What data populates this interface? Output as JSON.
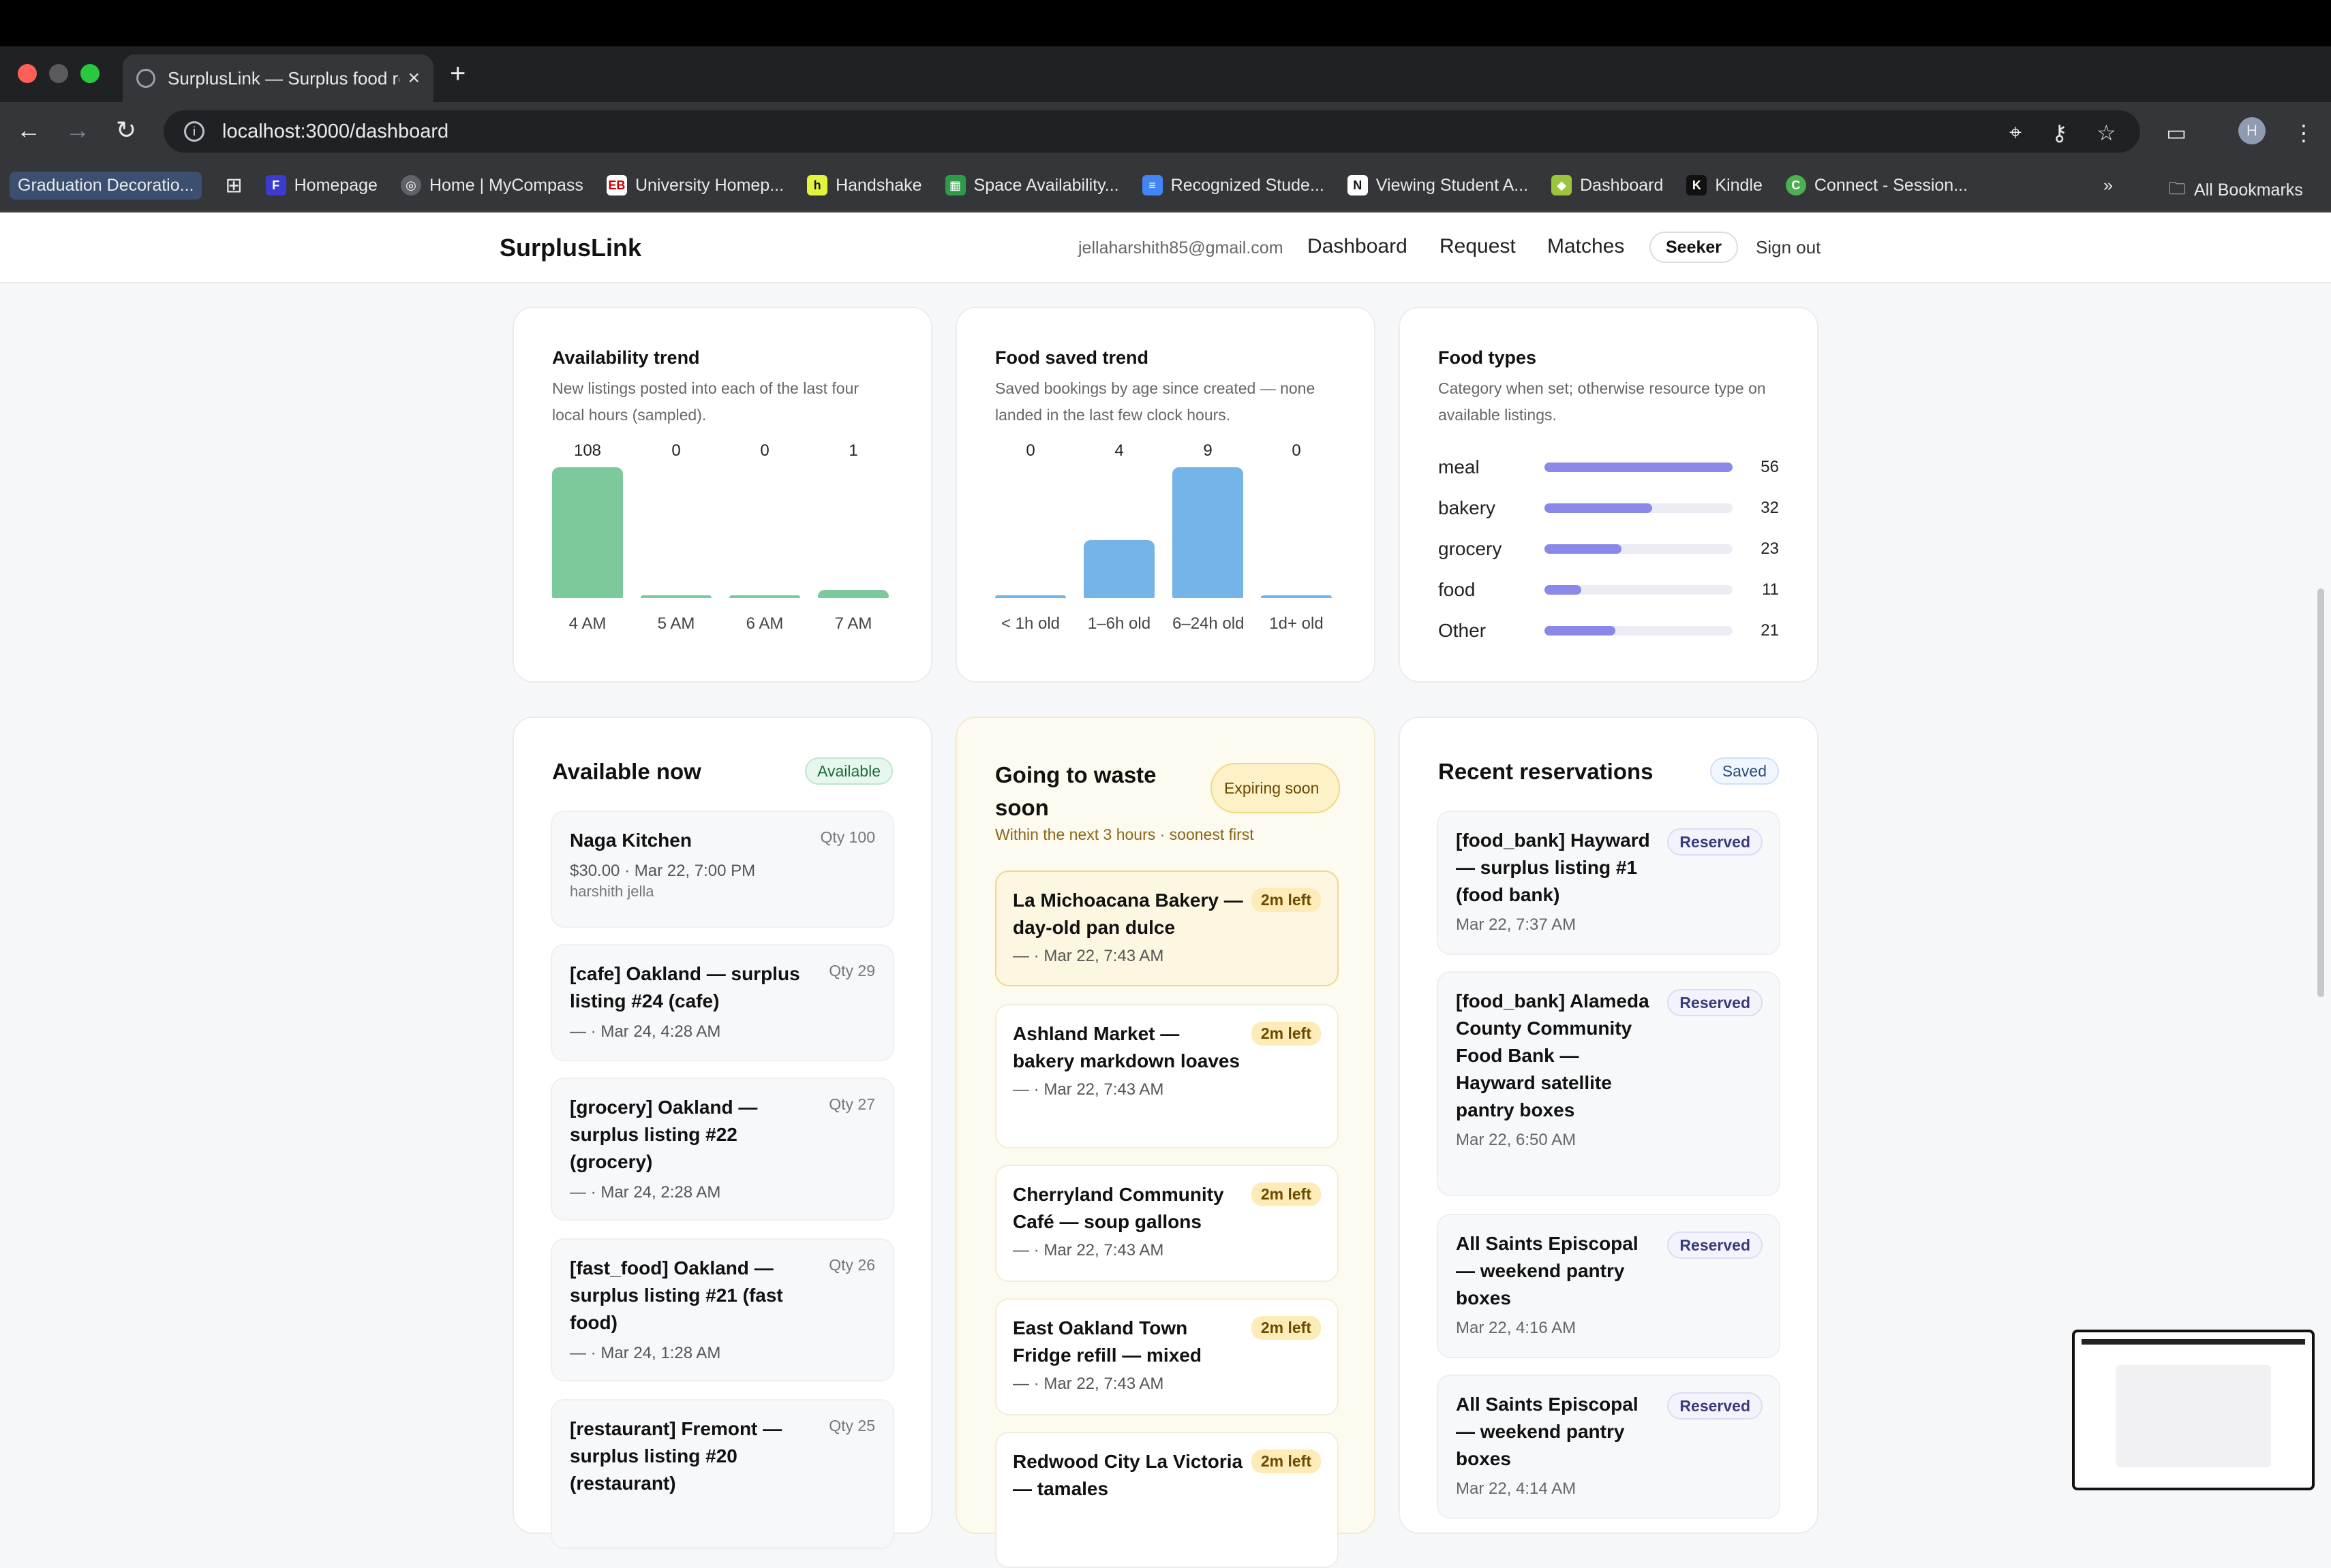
{
  "browser": {
    "tab_title": "SurplusLink — Surplus food re",
    "url": "localhost:3000/dashboard",
    "bookmarks": [
      {
        "label": "Graduation Decoratio...",
        "icon": "bookmark-icon"
      },
      {
        "label": "Homepage",
        "icon": "f-icon"
      },
      {
        "label": "Home | MyCompass",
        "icon": "compass-icon"
      },
      {
        "label": "University Homep...",
        "icon": "eb-icon"
      },
      {
        "label": "Handshake",
        "icon": "handshake-icon"
      },
      {
        "label": "Space Availability...",
        "icon": "sheet-icon"
      },
      {
        "label": "Recognized Stude...",
        "icon": "doc-icon"
      },
      {
        "label": "Viewing Student A...",
        "icon": "notion-icon"
      },
      {
        "label": "Dashboard",
        "icon": "cube-icon"
      },
      {
        "label": "Kindle",
        "icon": "kindle-icon"
      },
      {
        "label": "Connect - Session...",
        "icon": "connect-icon"
      }
    ],
    "all_bookmarks": "All Bookmarks",
    "profile_initial": "H"
  },
  "header": {
    "brand": "SurplusLink",
    "email": "jellaharshith85@gmail.com",
    "nav": [
      "Dashboard",
      "Request",
      "Matches"
    ],
    "role": "Seeker",
    "signout": "Sign out"
  },
  "availability": {
    "title": "Availability trend",
    "subtitle": "New listings posted into each of the last four local hours (sampled).",
    "chart_data": {
      "type": "bar",
      "categories": [
        "4 AM",
        "5 AM",
        "6 AM",
        "7 AM"
      ],
      "values": [
        108,
        0,
        0,
        1
      ],
      "color": "#7cc99b"
    }
  },
  "food_saved": {
    "title": "Food saved trend",
    "subtitle": "Saved bookings by age since created — none landed in the last few clock hours.",
    "chart_data": {
      "type": "bar",
      "categories": [
        "< 1h old",
        "1–6h old",
        "6–24h old",
        "1d+ old"
      ],
      "values": [
        0,
        4,
        9,
        0
      ],
      "color": "#74b4e9"
    }
  },
  "food_types": {
    "title": "Food types",
    "subtitle": "Category when set; otherwise resource type on available listings.",
    "chart_data": {
      "type": "bar",
      "categories": [
        "meal",
        "bakery",
        "grocery",
        "food",
        "Other"
      ],
      "values": [
        56,
        32,
        23,
        11,
        21
      ],
      "color": "#8b88ea"
    }
  },
  "available": {
    "title": "Available now",
    "badge": "Available",
    "items": [
      {
        "name": "Naga Kitchen",
        "meta": "$30.00 · Mar 22, 7:00 PM",
        "meta2": "harshith jella",
        "qty": "Qty 100"
      },
      {
        "name": "[cafe] Oakland — surplus listing #24 (cafe)",
        "meta": "— · Mar 24, 4:28 AM",
        "qty": "Qty 29"
      },
      {
        "name": "[grocery] Oakland — surplus listing #22 (grocery)",
        "meta": "— · Mar 24, 2:28 AM",
        "qty": "Qty 27"
      },
      {
        "name": "[fast_food] Oakland — surplus listing #21 (fast food)",
        "meta": "— · Mar 24, 1:28 AM",
        "qty": "Qty 26"
      },
      {
        "name": "[restaurant] Fremont — surplus listing #20 (restaurant)",
        "meta": "",
        "qty": "Qty 25"
      }
    ]
  },
  "waste": {
    "title": "Going to waste soon",
    "badge": "Expiring soon",
    "subtitle": "Within the next 3 hours · soonest first",
    "items": [
      {
        "name": "La Michoacana Bakery — day-old pan dulce",
        "meta": "— · Mar 22, 7:43 AM",
        "left": "2m left"
      },
      {
        "name": "Ashland Market — bakery markdown loaves",
        "meta": "— · Mar 22, 7:43 AM",
        "left": "2m left"
      },
      {
        "name": "Cherryland Community Café — soup gallons",
        "meta": "— · Mar 22, 7:43 AM",
        "left": "2m left"
      },
      {
        "name": "East Oakland Town Fridge refill — mixed",
        "meta": "— · Mar 22, 7:43 AM",
        "left": "2m left"
      },
      {
        "name": "Redwood City La Victoria — tamales",
        "meta": "",
        "left": "2m left"
      }
    ]
  },
  "reservations": {
    "title": "Recent reservations",
    "badge": "Saved",
    "items": [
      {
        "name": "[food_bank] Hayward — surplus listing #1 (food bank)",
        "meta": "Mar 22, 7:37 AM",
        "status": "Reserved"
      },
      {
        "name": "[food_bank] Alameda County Community Food Bank — Hayward satellite pantry boxes",
        "meta": "Mar 22, 6:50 AM",
        "status": "Reserved"
      },
      {
        "name": "All Saints Episcopal — weekend pantry boxes",
        "meta": "Mar 22, 4:16 AM",
        "status": "Reserved"
      },
      {
        "name": "All Saints Episcopal — weekend pantry boxes",
        "meta": "Mar 22, 4:14 AM",
        "status": "Reserved"
      }
    ]
  }
}
